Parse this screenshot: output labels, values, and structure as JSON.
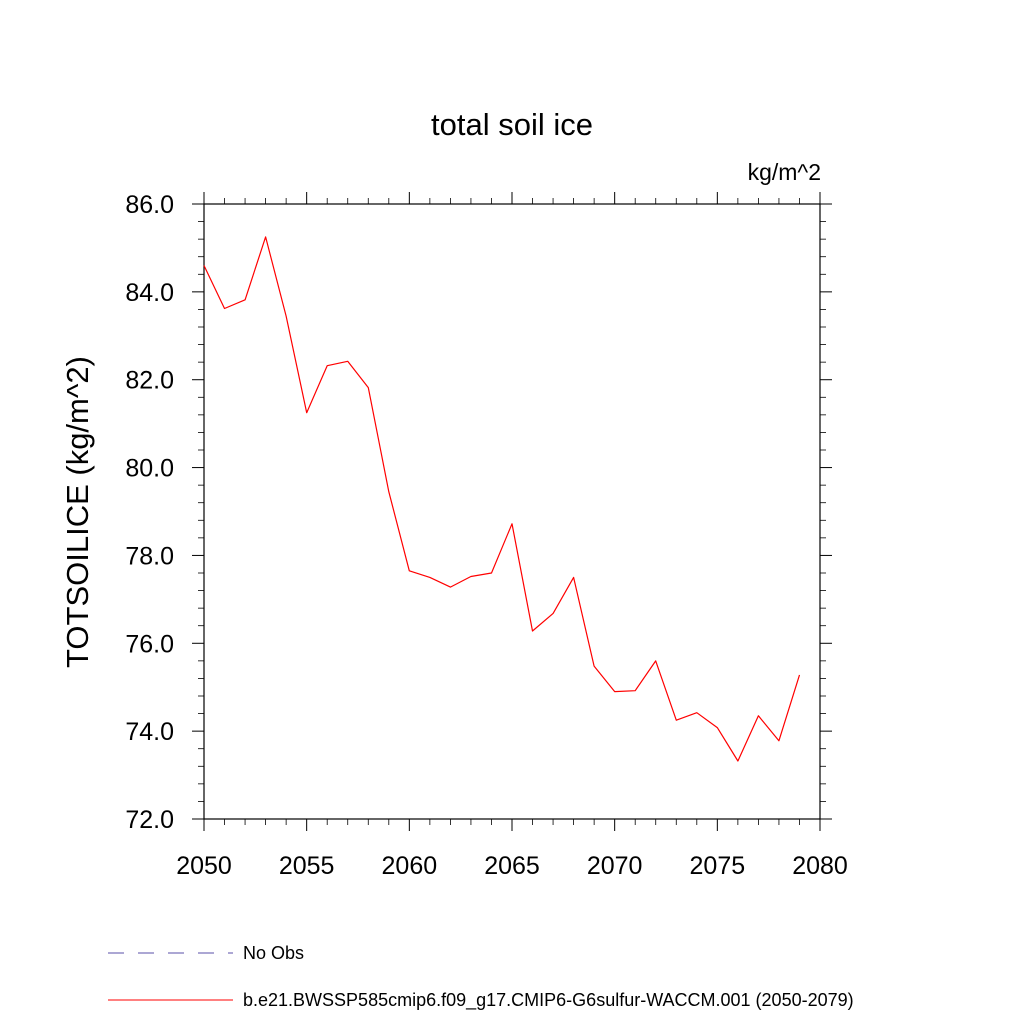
{
  "chart_data": {
    "type": "line",
    "title": "total soil ice",
    "units": "kg/m^2",
    "ylabel": "TOTSOILICE  (kg/m^2)",
    "xlabel": "",
    "xlim": [
      2050,
      2080
    ],
    "ylim": [
      72.0,
      86.0
    ],
    "x_ticks": [
      2050,
      2055,
      2060,
      2065,
      2070,
      2075,
      2080
    ],
    "x_tick_labels": [
      "2050",
      "2055",
      "2060",
      "2065",
      "2070",
      "2075",
      "2080"
    ],
    "y_ticks": [
      72,
      74,
      76,
      78,
      80,
      82,
      84,
      86
    ],
    "y_tick_labels": [
      "72.0",
      "74.0",
      "76.0",
      "78.0",
      "80.0",
      "82.0",
      "84.0",
      "86.0"
    ],
    "grid": false,
    "legend": {
      "placement": "bottom",
      "entries": [
        {
          "label": "No Obs",
          "color": "#5a4fa8",
          "style": "dashed"
        },
        {
          "label": "b.e21.BWSSP585cmip6.f09_g17.CMIP6-G6sulfur-WACCM.001 (2050-2079)",
          "color": "#ff0000",
          "style": "solid"
        }
      ]
    },
    "series": [
      {
        "name": "b.e21.BWSSP585cmip6.f09_g17.CMIP6-G6sulfur-WACCM.001 (2050-2079)",
        "color": "#ff0000",
        "x": [
          2050,
          2051,
          2052,
          2053,
          2054,
          2055,
          2056,
          2057,
          2058,
          2059,
          2060,
          2061,
          2062,
          2063,
          2064,
          2065,
          2066,
          2067,
          2068,
          2069,
          2070,
          2071,
          2072,
          2073,
          2074,
          2075,
          2076,
          2077,
          2078,
          2079
        ],
        "values": [
          84.6,
          83.62,
          83.82,
          85.25,
          83.45,
          81.25,
          82.32,
          82.42,
          81.82,
          79.45,
          77.65,
          77.5,
          77.28,
          77.52,
          77.6,
          78.72,
          76.28,
          76.68,
          77.5,
          75.48,
          74.9,
          74.92,
          75.6,
          74.25,
          74.42,
          74.08,
          73.32,
          74.35,
          73.78,
          75.28
        ]
      }
    ]
  }
}
